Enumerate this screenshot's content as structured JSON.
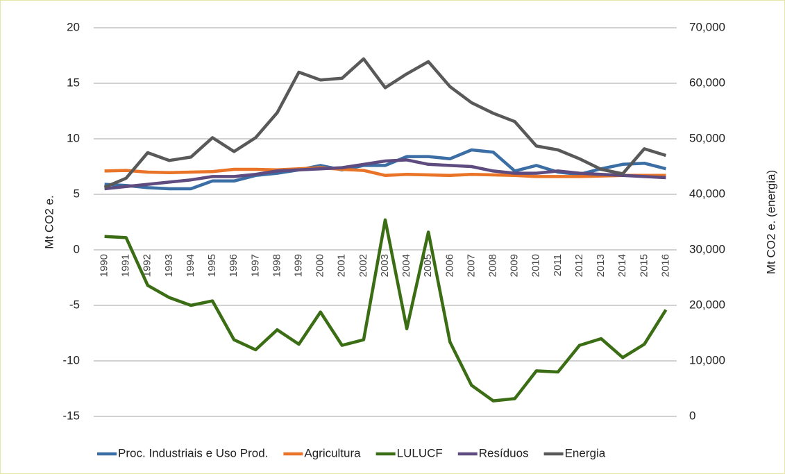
{
  "chart_data": {
    "type": "line",
    "categories": [
      "1990",
      "1991",
      "1992",
      "1993",
      "1994",
      "1995",
      "1996",
      "1997",
      "1998",
      "1999",
      "2000",
      "2001",
      "2002",
      "2003",
      "2004",
      "2005",
      "2006",
      "2007",
      "2008",
      "2009",
      "2010",
      "2011",
      "2012",
      "2013",
      "2014",
      "2015",
      "2016"
    ],
    "series": [
      {
        "name": "Proc. Industriais e Uso Prod.",
        "color": "#3a6ea5",
        "values": [
          5.9,
          5.8,
          5.6,
          5.5,
          5.5,
          6.2,
          6.2,
          6.7,
          6.9,
          7.2,
          7.6,
          7.2,
          7.6,
          7.6,
          8.4,
          8.4,
          8.2,
          9.0,
          8.8,
          7.1,
          7.6,
          7.0,
          6.8,
          7.3,
          7.7,
          7.8,
          7.3
        ]
      },
      {
        "name": "Agricultura",
        "color": "#e97326",
        "values": [
          7.1,
          7.15,
          7.0,
          6.95,
          7.0,
          7.05,
          7.25,
          7.25,
          7.2,
          7.3,
          7.4,
          7.25,
          7.15,
          6.7,
          6.8,
          6.75,
          6.7,
          6.8,
          6.75,
          6.7,
          6.6,
          6.6,
          6.6,
          6.65,
          6.7,
          6.7,
          6.7
        ]
      },
      {
        "name": "LULUCF",
        "color": "#3b6e14",
        "values": [
          1.2,
          1.1,
          -3.2,
          -4.3,
          -5.0,
          -4.6,
          -8.1,
          -9.0,
          -7.2,
          -8.5,
          -5.6,
          -8.6,
          -8.1,
          2.7,
          -7.1,
          1.6,
          -8.3,
          -12.2,
          -13.6,
          -13.4,
          -10.9,
          -11.0,
          -8.6,
          -8.0,
          -9.7,
          -8.5,
          -5.4
        ]
      },
      {
        "name": "Resíduos",
        "color": "#5e4b7f",
        "values": [
          5.5,
          5.7,
          5.9,
          6.1,
          6.3,
          6.6,
          6.6,
          6.8,
          7.1,
          7.2,
          7.3,
          7.4,
          7.7,
          8.0,
          8.1,
          7.7,
          7.6,
          7.5,
          7.1,
          6.9,
          6.9,
          7.1,
          6.9,
          6.8,
          6.7,
          6.6,
          6.5
        ]
      },
      {
        "name": "Energia",
        "color": "#595959",
        "axis": "y2",
        "values": [
          41250,
          42900,
          47500,
          46100,
          46700,
          50200,
          47700,
          50200,
          54700,
          62000,
          60600,
          60900,
          64400,
          59200,
          61700,
          63900,
          59400,
          56500,
          54600,
          53100,
          48700,
          48000,
          46400,
          44500,
          43700,
          48200,
          47000
        ]
      }
    ],
    "ylabel": "Mt CO2 e.",
    "y2label": "Mt CO2 e. (energia)",
    "ylim": [
      -15,
      20
    ],
    "yticks": [
      -15,
      -10,
      -5,
      0,
      5,
      10,
      15,
      20
    ],
    "y2lim": [
      0,
      70000
    ],
    "y2ticks": [
      0,
      {
        "value": 10000,
        "label": "10,000"
      },
      {
        "value": 20000,
        "label": "20,000"
      },
      {
        "value": 30000,
        "label": "30,000"
      },
      {
        "value": 40000,
        "label": "40,000"
      },
      {
        "value": 50000,
        "label": "50,000"
      },
      {
        "value": 60000,
        "label": "60,000"
      },
      {
        "value": 70000,
        "label": "70,000"
      }
    ],
    "grid": true,
    "legend": "bottom"
  }
}
